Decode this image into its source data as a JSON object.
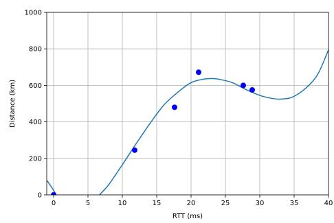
{
  "chart_data": {
    "type": "scatter",
    "title": "",
    "xlabel": "RTT (ms)",
    "ylabel": "Distance (km)",
    "xlim": [
      -1,
      40
    ],
    "ylim": [
      0,
      1000
    ],
    "xticks": [
      0,
      5,
      10,
      15,
      20,
      25,
      30,
      35,
      40
    ],
    "yticks": [
      0,
      200,
      400,
      600,
      800,
      1000
    ],
    "grid": true,
    "legend": "none",
    "colors": {
      "points": "#0000ff",
      "curve": "#1f77b4"
    },
    "series": [
      {
        "type": "scatter",
        "x": [
          0,
          11.8,
          17.6,
          21.1,
          27.6,
          28.9
        ],
        "y": [
          0,
          245,
          480,
          672,
          600,
          575
        ]
      },
      {
        "type": "line",
        "x": [
          -1,
          0,
          2,
          4,
          6,
          6.7,
          8,
          10,
          12,
          14,
          16,
          18,
          20,
          22,
          23.3,
          24,
          26,
          28,
          30,
          32,
          33.5,
          35,
          37,
          38.5,
          40
        ],
        "y": [
          80,
          25,
          -100,
          -95,
          -40,
          0,
          55,
          165,
          280,
          390,
          490,
          560,
          615,
          635,
          637,
          634,
          615,
          577,
          545,
          527,
          526,
          540,
          595,
          665,
          795
        ]
      }
    ]
  }
}
